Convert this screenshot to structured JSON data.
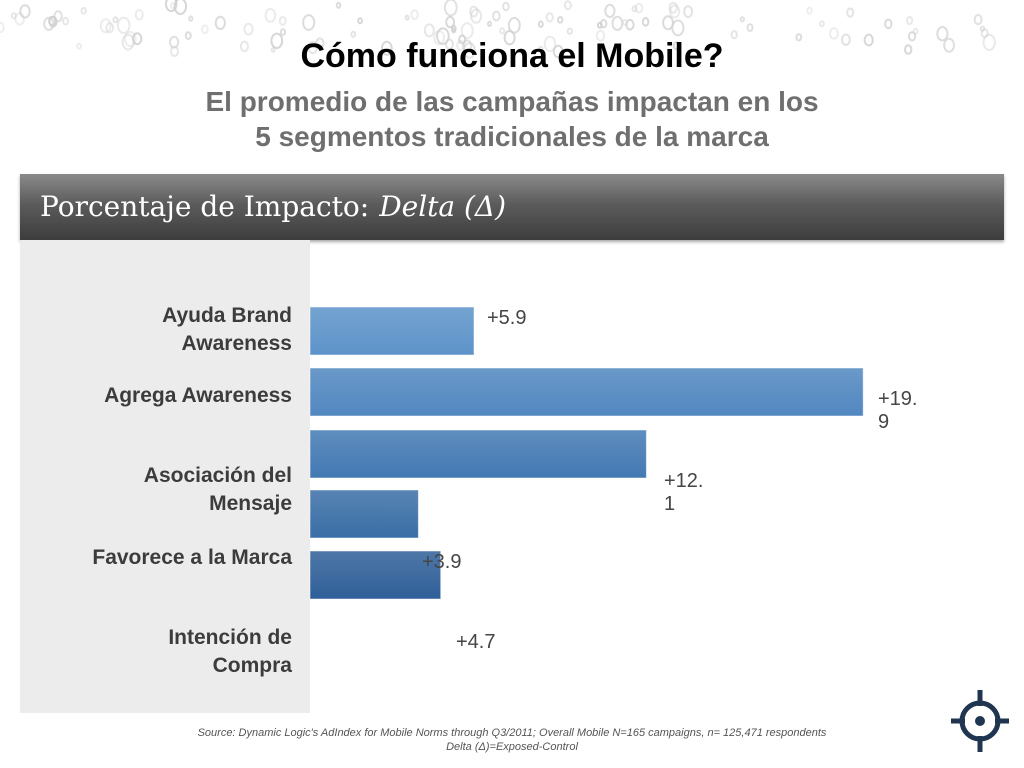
{
  "header": {
    "title": "Cómo funciona el Mobile?",
    "subtitle_line1": "El promedio de las campañas impactan en los",
    "subtitle_line2": "5 segmentos tradicionales de la marca"
  },
  "banner": {
    "label": "Porcentaje de Impacto:",
    "delta": "Delta (Δ)"
  },
  "chart_data": {
    "type": "bar",
    "orientation": "horizontal",
    "categories": [
      [
        "Ayuda Brand",
        "Awareness"
      ],
      [
        "Agrega Awareness"
      ],
      [
        "Asociación del",
        "Mensaje"
      ],
      [
        "Favorece a la Marca"
      ],
      [
        "Intención de",
        "Compra"
      ]
    ],
    "values": [
      5.9,
      19.9,
      12.1,
      3.9,
      4.7
    ],
    "value_labels": [
      [
        "+5.9"
      ],
      [
        "+19.",
        "9"
      ],
      [
        "+12.",
        "1"
      ],
      [
        "+3.9"
      ],
      [
        "+4.7"
      ]
    ],
    "bar_colors": [
      "#5d93c9",
      "#5187c0",
      "#4379b3",
      "#3a6ea6",
      "#2f5f98"
    ],
    "xlim": [
      0,
      20
    ],
    "grid": false,
    "legend": "none"
  },
  "footer": {
    "source": "Source:  Dynamic Logic's AdIndex for Mobile Norms through Q3/2011; Overall Mobile N=165 campaigns, n= 125,471 respondents",
    "note": "Delta (Δ)=Exposed-Control"
  },
  "logo": {
    "icon": "crosshair-icon"
  }
}
